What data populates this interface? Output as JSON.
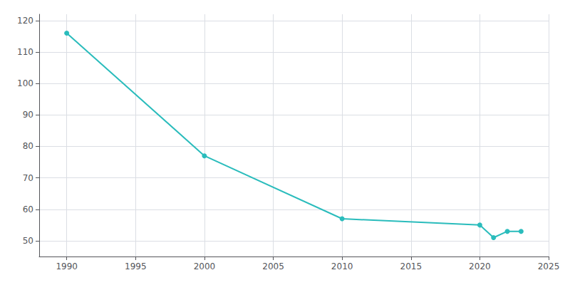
{
  "chart_data": {
    "type": "line",
    "x": [
      1990,
      2000,
      2010,
      2020,
      2021,
      2022,
      2023
    ],
    "values": [
      116,
      77,
      57,
      55,
      51,
      53,
      53
    ],
    "color": "#2abcbc",
    "marker": "circle",
    "xlim": [
      1988,
      2025
    ],
    "ylim": [
      45,
      122
    ],
    "xticks": [
      1990,
      1995,
      2000,
      2005,
      2010,
      2015,
      2020,
      2025
    ],
    "yticks": [
      50,
      60,
      70,
      80,
      90,
      100,
      110,
      120
    ],
    "grid": true
  }
}
